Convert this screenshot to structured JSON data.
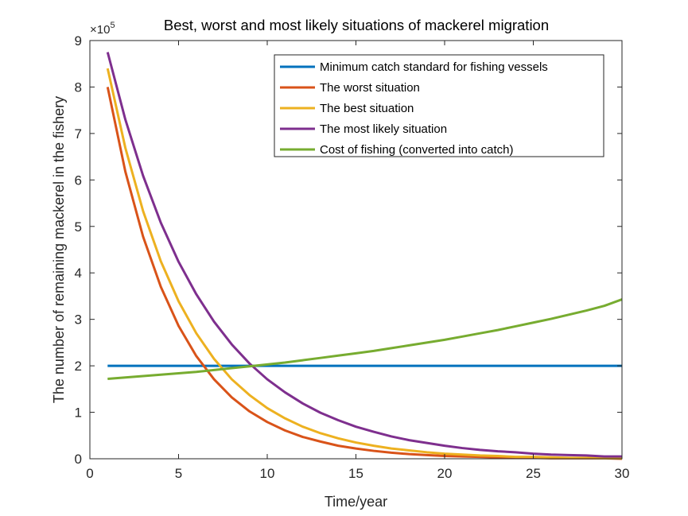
{
  "chart_data": {
    "type": "line",
    "title": "Best, worst and most likely situations of mackerel migration",
    "xlabel": "Time/year",
    "ylabel": "The number of remaining mackerel in the fishery",
    "y_exponent_label": "×10",
    "y_exponent_power": "5",
    "xlim": [
      0,
      30
    ],
    "ylim": [
      0,
      9
    ],
    "xticks": [
      0,
      5,
      10,
      15,
      20,
      25,
      30
    ],
    "yticks": [
      0,
      1,
      2,
      3,
      4,
      5,
      6,
      7,
      8,
      9
    ],
    "legend_position": "top-right",
    "grid": false,
    "x": [
      1,
      2,
      3,
      4,
      5,
      6,
      7,
      8,
      9,
      10,
      11,
      12,
      13,
      14,
      15,
      16,
      17,
      18,
      19,
      20,
      21,
      22,
      23,
      24,
      25,
      26,
      27,
      28,
      29,
      30
    ],
    "series": [
      {
        "name": "Minimum catch standard for fishing vessels",
        "color": "#0072BD",
        "values": [
          2,
          2,
          2,
          2,
          2,
          2,
          2,
          2,
          2,
          2,
          2,
          2,
          2,
          2,
          2,
          2,
          2,
          2,
          2,
          2,
          2,
          2,
          2,
          2,
          2,
          2,
          2,
          2,
          2,
          2
        ]
      },
      {
        "name": "The worst situation",
        "color": "#D95319",
        "values": [
          8.0,
          6.18,
          4.78,
          3.7,
          2.86,
          2.21,
          1.71,
          1.32,
          1.02,
          0.79,
          0.61,
          0.47,
          0.37,
          0.28,
          0.22,
          0.17,
          0.13,
          0.1,
          0.08,
          0.06,
          0.05,
          0.04,
          0.03,
          0.02,
          0.02,
          0.01,
          0.01,
          0.01,
          0.01,
          0.0
        ]
      },
      {
        "name": "The best situation",
        "color": "#EDB120",
        "values": [
          8.4,
          6.69,
          5.33,
          4.25,
          3.39,
          2.7,
          2.15,
          1.71,
          1.37,
          1.09,
          0.87,
          0.69,
          0.55,
          0.44,
          0.35,
          0.28,
          0.22,
          0.18,
          0.14,
          0.11,
          0.09,
          0.07,
          0.06,
          0.04,
          0.04,
          0.03,
          0.02,
          0.02,
          0.01,
          0.01
        ]
      },
      {
        "name": "The most likely situation",
        "color": "#7E2F8E",
        "values": [
          8.75,
          7.3,
          6.09,
          5.08,
          4.24,
          3.54,
          2.95,
          2.46,
          2.05,
          1.71,
          1.43,
          1.19,
          0.99,
          0.83,
          0.69,
          0.58,
          0.48,
          0.4,
          0.34,
          0.28,
          0.23,
          0.19,
          0.16,
          0.14,
          0.11,
          0.09,
          0.08,
          0.07,
          0.05,
          0.05
        ]
      },
      {
        "name": "Cost of fishing (converted into catch)",
        "color": "#77AC30",
        "values": [
          1.72,
          1.75,
          1.78,
          1.81,
          1.84,
          1.87,
          1.91,
          1.95,
          1.99,
          2.03,
          2.07,
          2.12,
          2.17,
          2.22,
          2.27,
          2.32,
          2.38,
          2.44,
          2.5,
          2.56,
          2.63,
          2.7,
          2.77,
          2.85,
          2.93,
          3.01,
          3.1,
          3.19,
          3.29,
          3.43
        ]
      }
    ]
  }
}
